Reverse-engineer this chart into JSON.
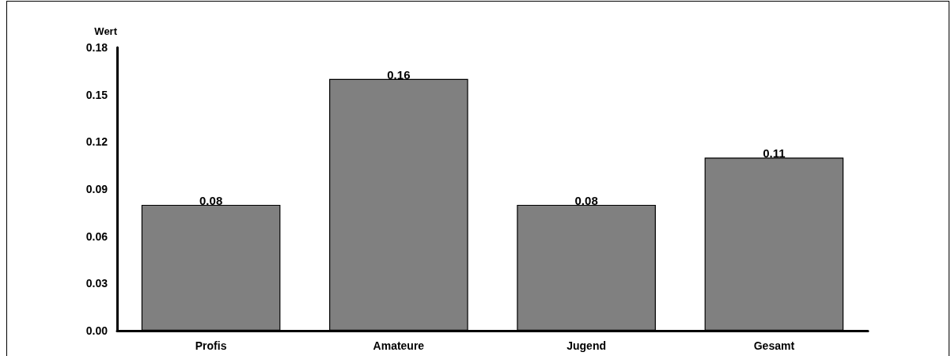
{
  "chart_data": {
    "type": "bar",
    "ylabel": "Wert",
    "categories": [
      "Profis",
      "Amateure",
      "Jugend",
      "Gesamt"
    ],
    "values": [
      0.08,
      0.16,
      0.08,
      0.11
    ],
    "color": "#808080",
    "ylim": [
      0,
      0.18
    ],
    "yticks": [
      {
        "value": 0,
        "label": "0.00"
      },
      0.03,
      0.06,
      0.09,
      0.12,
      0.15,
      0.18
    ],
    "data_labels": true,
    "grid": false
  }
}
